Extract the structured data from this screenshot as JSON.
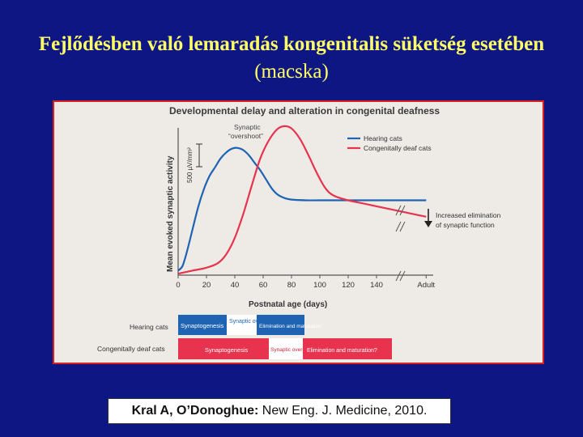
{
  "slide": {
    "title_bold": "Fejlődésben való lemaradás kongenitalis süketség esetében",
    "title_normal": "(macska)",
    "citation_authors": "Kral A, O’Donoghue:",
    "citation_rest": " New Eng. J. Medicine, 2010."
  },
  "colors": {
    "hearing": "#1f63b3",
    "deaf": "#e8334f",
    "background": "#0d1683",
    "title": "#ffff66"
  },
  "chart_data": {
    "type": "line",
    "title": "Developmental delay and alteration in congenital deafness",
    "xlabel": "Postnatal age (days)",
    "ylabel": "Mean evoked synaptic activity",
    "x_ticks": [
      "0",
      "20",
      "40",
      "60",
      "80",
      "100",
      "120",
      "140",
      "Adult"
    ],
    "scale_bar_label": "500 µV/mm²",
    "legend": [
      "Hearing cats",
      "Congenitally deaf cats"
    ],
    "legend_position": "top-right",
    "annotations": [
      "Synaptic",
      "“overshoot”",
      "Increased elimination",
      "of synaptic function"
    ],
    "series": [
      {
        "name": "Hearing cats",
        "points": [
          [
            0,
            0.03
          ],
          [
            3,
            0.06
          ],
          [
            6,
            0.15
          ],
          [
            10,
            0.3
          ],
          [
            14,
            0.45
          ],
          [
            18,
            0.57
          ],
          [
            22,
            0.66
          ],
          [
            26,
            0.72
          ],
          [
            30,
            0.78
          ],
          [
            34,
            0.82
          ],
          [
            38,
            0.845
          ],
          [
            42,
            0.85
          ],
          [
            46,
            0.835
          ],
          [
            50,
            0.8
          ],
          [
            54,
            0.75
          ],
          [
            58,
            0.7
          ],
          [
            62,
            0.64
          ],
          [
            66,
            0.58
          ],
          [
            70,
            0.54
          ],
          [
            75,
            0.515
          ],
          [
            80,
            0.505
          ],
          [
            90,
            0.5
          ],
          [
            100,
            0.5
          ],
          [
            120,
            0.5
          ],
          [
            140,
            0.5
          ],
          [
            155,
            0.5
          ],
          [
            175,
            0.5
          ]
        ]
      },
      {
        "name": "Congenitally deaf cats",
        "points": [
          [
            0,
            0.01
          ],
          [
            10,
            0.03
          ],
          [
            20,
            0.05
          ],
          [
            28,
            0.08
          ],
          [
            34,
            0.14
          ],
          [
            40,
            0.25
          ],
          [
            46,
            0.41
          ],
          [
            52,
            0.6
          ],
          [
            58,
            0.78
          ],
          [
            64,
            0.9
          ],
          [
            70,
            0.975
          ],
          [
            75,
            0.995
          ],
          [
            80,
            0.98
          ],
          [
            86,
            0.91
          ],
          [
            92,
            0.8
          ],
          [
            98,
            0.68
          ],
          [
            104,
            0.58
          ],
          [
            110,
            0.53
          ],
          [
            120,
            0.5
          ],
          [
            130,
            0.48
          ],
          [
            140,
            0.46
          ],
          [
            155,
            0.43
          ],
          [
            165,
            0.41
          ],
          [
            175,
            0.39
          ]
        ]
      }
    ],
    "timeline": {
      "rows": [
        {
          "label": "Hearing cats",
          "segments": [
            "Synaptogenesis",
            "Synaptic overshoot",
            "Elimination and maturation"
          ]
        },
        {
          "label": "Congenitally deaf cats",
          "segments": [
            "Synaptogenesis",
            "Synaptic overshoot",
            "Elimination and maturation?"
          ]
        }
      ]
    }
  }
}
